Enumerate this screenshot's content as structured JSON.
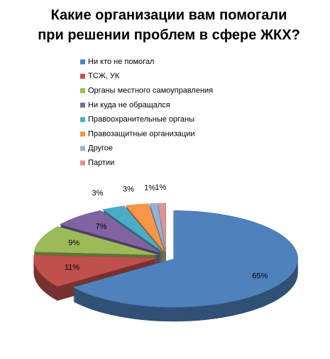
{
  "chart_data": {
    "type": "pie",
    "title": [
      "Какие организации вам помогали",
      "при решении проблем в сфере ЖКХ?"
    ],
    "categories": [
      "Ни кто не помогал",
      "ТСЖ, УК",
      "Органы местного самоуправления",
      "Ни куда не обращался",
      "Правоохранительные органы",
      "Правозащитные организации",
      "Другое",
      "Партии"
    ],
    "values": [
      65,
      11,
      9,
      7,
      3,
      3,
      1,
      1
    ],
    "value_labels": [
      "65%",
      "11%",
      "9%",
      "7%",
      "3%",
      "3%",
      "1%",
      "1%"
    ],
    "colors": [
      "#4f81bd",
      "#c0504d",
      "#9bbb59",
      "#8064a2",
      "#4bacc6",
      "#f79646",
      "#95b3d7",
      "#d99694"
    ],
    "legend": "top"
  }
}
